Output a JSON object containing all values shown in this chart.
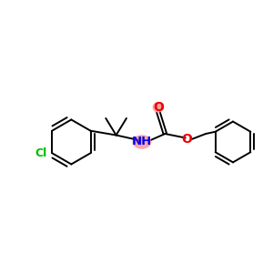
{
  "bg_color": "#ffffff",
  "bond_color": "#000000",
  "cl_color": "#00bb00",
  "n_color": "#0000ee",
  "o_color": "#ee0000",
  "nh_highlight": "#ff8888",
  "o_highlight": "#ff8888",
  "lw": 1.4,
  "figsize": [
    3.0,
    3.0
  ],
  "dpi": 100,
  "xlim": [
    0,
    10
  ],
  "ylim": [
    2,
    8
  ]
}
